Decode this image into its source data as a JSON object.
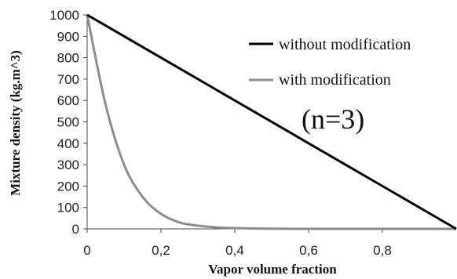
{
  "chart_data": {
    "type": "line",
    "title": "",
    "xlabel": "Vapor volume fraction",
    "ylabel": "Mixture density (kg.m^3)",
    "xlim": [
      0,
      1
    ],
    "ylim": [
      0,
      1000
    ],
    "x_ticks": [
      0,
      0.2,
      0.4,
      0.6,
      0.8
    ],
    "x_tick_labels": [
      "0",
      "0,2",
      "0,4",
      "0,6",
      "0,8"
    ],
    "y_ticks": [
      0,
      100,
      200,
      300,
      400,
      500,
      600,
      700,
      800,
      900,
      1000
    ],
    "y_tick_labels": [
      "0",
      "100",
      "200",
      "300",
      "400",
      "500",
      "600",
      "700",
      "800",
      "900",
      "1000"
    ],
    "grid": false,
    "legend_position": "top-right",
    "annotation": "(n=3)",
    "series": [
      {
        "name": "without modification",
        "color": "#000000",
        "x": [
          0,
          1
        ],
        "y": [
          1000,
          0
        ]
      },
      {
        "name": "with modification",
        "color": "#8c8c8c",
        "x": [
          0,
          0.05,
          0.1,
          0.15,
          0.2,
          0.25,
          0.3,
          0.35,
          0.4,
          0.5,
          0.6,
          0.8,
          1
        ],
        "y": [
          1000,
          580,
          300,
          150,
          70,
          30,
          15,
          7,
          3,
          1,
          0,
          0,
          0
        ]
      }
    ]
  }
}
